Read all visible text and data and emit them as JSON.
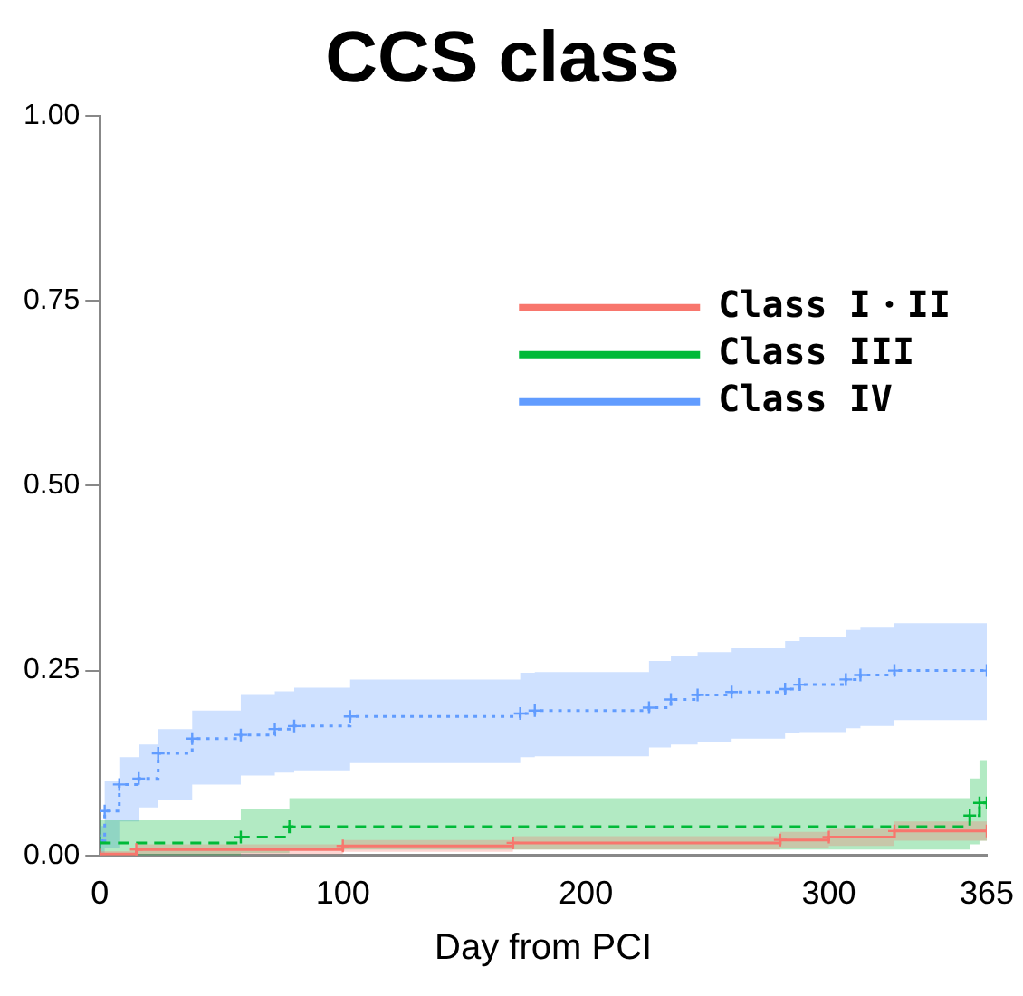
{
  "chart_data": {
    "type": "step",
    "title": "CCS class",
    "xlabel": "Day from PCI",
    "xlim": [
      0,
      365
    ],
    "xticks": [
      0,
      100,
      200,
      300,
      365
    ],
    "ylim": [
      0,
      1
    ],
    "yticks": [
      {
        "value": 0,
        "label": "0.00"
      },
      {
        "value": 0.25,
        "label": "0.25"
      },
      {
        "value": 0.5,
        "label": "0.50"
      },
      {
        "value": 0.75,
        "label": "0.75"
      },
      {
        "value": 1,
        "label": "1.00"
      }
    ],
    "grid": false,
    "legend": "top right",
    "marker": "cross",
    "series": [
      {
        "name": "Class I・II",
        "color": "#f8766d",
        "line_style": "solid",
        "x": [
          0,
          15,
          100,
          170,
          280,
          300,
          327,
          365
        ],
        "values": [
          0.002,
          0.008,
          0.013,
          0.017,
          0.021,
          0.025,
          0.033,
          0.033
        ],
        "lower": [
          0,
          0.002,
          0.005,
          0.008,
          0.01,
          0.013,
          0.02,
          0.02
        ],
        "upper": [
          0.006,
          0.015,
          0.021,
          0.026,
          0.032,
          0.036,
          0.046,
          0.046
        ]
      },
      {
        "name": "Class III",
        "color": "#00ba38",
        "line_style": "dashed",
        "x": [
          0,
          58,
          78,
          358,
          362,
          365
        ],
        "values": [
          0.017,
          0.025,
          0.039,
          0.054,
          0.071,
          0.071
        ],
        "lower": [
          0,
          0.003,
          0.008,
          0.015,
          0.02,
          0.02
        ],
        "upper": [
          0.0475,
          0.0625,
          0.0775,
          0.104,
          0.129,
          0.129
        ]
      },
      {
        "name": "Class IV",
        "color": "#619cff",
        "line_style": "dotted",
        "x": [
          0,
          2,
          8,
          16,
          24,
          38,
          58,
          72,
          80,
          103,
          173,
          179,
          226,
          235,
          246,
          260,
          282,
          288,
          307,
          313,
          327,
          365
        ],
        "values": [
          0.02,
          0.06,
          0.096,
          0.104,
          0.138,
          0.158,
          0.163,
          0.171,
          0.175,
          0.188,
          0.192,
          0.196,
          0.2,
          0.211,
          0.217,
          0.221,
          0.225,
          0.231,
          0.238,
          0.244,
          0.25,
          0.25
        ],
        "lower": [
          0,
          0.01,
          0.046,
          0.065,
          0.075,
          0.096,
          0.108,
          0.112,
          0.115,
          0.125,
          0.133,
          0.134,
          0.146,
          0.15,
          0.154,
          0.158,
          0.165,
          0.167,
          0.172,
          0.175,
          0.183,
          0.183
        ],
        "upper": [
          0.04,
          0.1,
          0.133,
          0.15,
          0.171,
          0.196,
          0.217,
          0.222,
          0.227,
          0.238,
          0.247,
          0.248,
          0.263,
          0.27,
          0.275,
          0.28,
          0.29,
          0.296,
          0.305,
          0.308,
          0.314,
          0.314
        ]
      }
    ]
  }
}
